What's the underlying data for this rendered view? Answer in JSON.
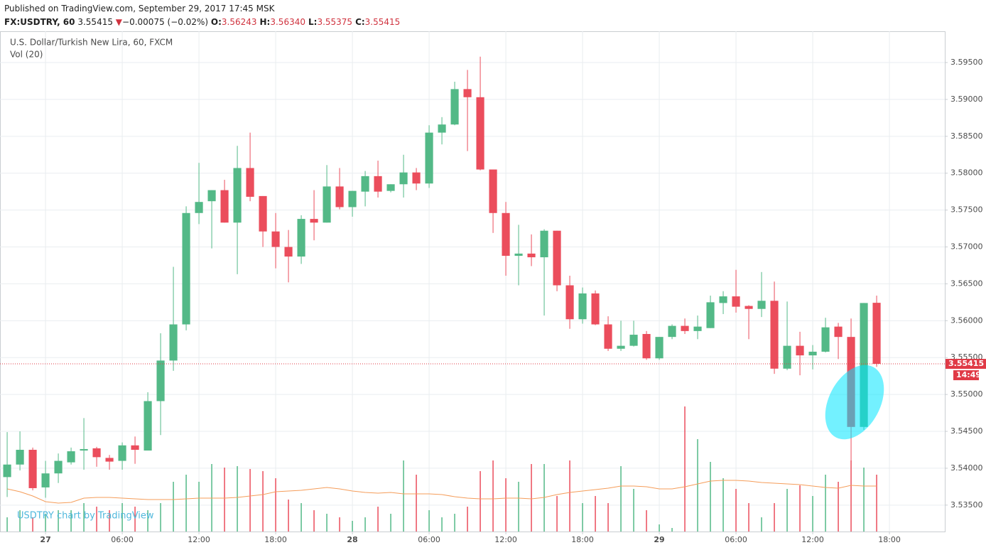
{
  "header": {
    "published": "Published on TradingView.com, September 29, 2017 17:45 MSK",
    "symbol": "FX:USDTRY, 60",
    "last": "3.55415",
    "direction": "▼",
    "change": "−0.00075 (−0.02%)",
    "ohlc": [
      {
        "label": "O:",
        "value": "3.56243"
      },
      {
        "label": "H:",
        "value": "3.56340"
      },
      {
        "label": "L:",
        "value": "3.55375"
      },
      {
        "label": "C:",
        "value": "3.55415"
      }
    ]
  },
  "chart_data": {
    "type": "candlestick",
    "title": "U.S. Dollar/Turkish New Lira, 60, FXCM",
    "volume_title": "Vol (20)",
    "watermark": "USDTRY chart by TradingView",
    "x": [
      0,
      1,
      2,
      3,
      4,
      5,
      6,
      7,
      8,
      9,
      10,
      11,
      12,
      13,
      14,
      15,
      16,
      17,
      18,
      19,
      20,
      21,
      22,
      23,
      24,
      25,
      26,
      27,
      28,
      29,
      30,
      31,
      32,
      33,
      34,
      35,
      36,
      37,
      38,
      39,
      40,
      41,
      42,
      43,
      44,
      45,
      46,
      47,
      48,
      49,
      50,
      51,
      52,
      53,
      54,
      55,
      56,
      57,
      58,
      59,
      60,
      61,
      62,
      63,
      64,
      65,
      66,
      67,
      68
    ],
    "open": [
      3.5388,
      3.5405,
      3.5425,
      3.5374,
      3.5393,
      3.5408,
      3.5424,
      3.5427,
      3.5414,
      3.541,
      3.5431,
      3.5424,
      3.5491,
      3.5546,
      3.5595,
      3.5746,
      3.5762,
      3.5777,
      3.5733,
      3.5807,
      3.5769,
      3.5721,
      3.57,
      3.5687,
      3.5738,
      3.5733,
      3.5782,
      3.5754,
      3.5775,
      3.5796,
      3.5776,
      3.5785,
      3.5801,
      3.5786,
      3.5855,
      3.5866,
      3.5914,
      3.5903,
      3.5805,
      3.5746,
      3.5688,
      3.5691,
      3.5686,
      3.5722,
      3.5648,
      3.5602,
      3.5637,
      3.5595,
      3.5562,
      3.5566,
      3.5582,
      3.5549,
      3.5578,
      3.5593,
      3.5586,
      3.559,
      3.5624,
      3.5633,
      3.562,
      3.5616,
      3.5627,
      3.5535,
      3.5566,
      3.5553,
      3.5558,
      3.5592,
      3.5578,
      3.5456,
      3.56243
    ],
    "high": [
      3.5449,
      3.545,
      3.5428,
      3.541,
      3.542,
      3.5428,
      3.5468,
      3.5429,
      3.5418,
      3.5435,
      3.5443,
      3.5503,
      3.5583,
      3.5673,
      3.5755,
      3.5814,
      3.5777,
      3.5791,
      3.5837,
      3.5855,
      3.5769,
      3.5746,
      3.5723,
      3.5743,
      3.5777,
      3.5811,
      3.5807,
      3.5776,
      3.5803,
      3.5817,
      3.5785,
      3.5825,
      3.5807,
      3.5865,
      3.5876,
      3.5924,
      3.594,
      3.5958,
      3.5805,
      3.5761,
      3.573,
      3.5717,
      3.5724,
      3.5722,
      3.5661,
      3.5645,
      3.5641,
      3.5606,
      3.56,
      3.56,
      3.5586,
      3.5578,
      3.5595,
      3.5603,
      3.5607,
      3.5634,
      3.564,
      3.5669,
      3.5621,
      3.5666,
      3.5653,
      3.5626,
      3.5585,
      3.5567,
      3.5604,
      3.5597,
      3.5603,
      3.5624,
      3.5634
    ],
    "low": [
      3.5361,
      3.5397,
      3.537,
      3.536,
      3.538,
      3.5405,
      3.5398,
      3.5402,
      3.5398,
      3.5398,
      3.5406,
      3.5424,
      3.5445,
      3.5532,
      3.5587,
      3.5731,
      3.5698,
      3.5733,
      3.5663,
      3.5762,
      3.57,
      3.5671,
      3.5652,
      3.5677,
      3.5709,
      3.5733,
      3.5751,
      3.5741,
      3.5755,
      3.5767,
      3.5774,
      3.5767,
      3.5777,
      3.578,
      3.5839,
      3.5865,
      3.583,
      3.5804,
      3.5719,
      3.5661,
      3.5648,
      3.5674,
      3.5607,
      3.564,
      3.5589,
      3.5596,
      3.5594,
      3.5559,
      3.5559,
      3.5565,
      3.5547,
      3.5547,
      3.5575,
      3.5582,
      3.5575,
      3.559,
      3.5609,
      3.5611,
      3.5575,
      3.5605,
      3.5528,
      3.5533,
      3.5526,
      3.5534,
      3.5557,
      3.5548,
      3.5409,
      3.5452,
      3.55375
    ],
    "close": [
      3.5405,
      3.5425,
      3.5373,
      3.5393,
      3.541,
      3.5423,
      3.5426,
      3.5415,
      3.5409,
      3.5431,
      3.5425,
      3.5491,
      3.5546,
      3.5595,
      3.5746,
      3.5761,
      3.5777,
      3.5733,
      3.5807,
      3.5768,
      3.5721,
      3.57,
      3.5687,
      3.5738,
      3.5733,
      3.5782,
      3.5754,
      3.5776,
      3.5796,
      3.5775,
      3.5785,
      3.5801,
      3.5786,
      3.5855,
      3.5866,
      3.5914,
      3.5903,
      3.5805,
      3.5746,
      3.5688,
      3.5691,
      3.5686,
      3.5722,
      3.5648,
      3.5602,
      3.5637,
      3.5595,
      3.5562,
      3.5566,
      3.5581,
      3.5549,
      3.5578,
      3.5593,
      3.5586,
      3.5592,
      3.5625,
      3.5633,
      3.5619,
      3.5616,
      3.5627,
      3.5535,
      3.5566,
      3.5553,
      3.5558,
      3.5591,
      3.5578,
      3.5456,
      3.5624,
      3.55415
    ],
    "volume": [
      20,
      30,
      20,
      25,
      30,
      30,
      40,
      35,
      30,
      40,
      35,
      30,
      40,
      70,
      80,
      70,
      95,
      90,
      92,
      88,
      85,
      75,
      45,
      40,
      30,
      25,
      20,
      15,
      20,
      35,
      25,
      100,
      80,
      30,
      20,
      25,
      35,
      85,
      100,
      75,
      70,
      95,
      95,
      50,
      100,
      40,
      50,
      40,
      92,
      60,
      30,
      10,
      5,
      176,
      130,
      98,
      75,
      60,
      40,
      20,
      40,
      60,
      65,
      50,
      80,
      70,
      100,
      90,
      80
    ],
    "volume_ma": [
      60,
      56,
      50,
      42,
      40,
      41,
      47,
      48,
      48,
      47,
      46,
      45,
      45,
      45,
      46,
      47,
      47,
      47,
      48,
      50,
      52,
      56,
      57,
      58,
      60,
      62,
      60,
      57,
      55,
      54,
      55,
      53,
      53,
      53,
      52,
      49,
      47,
      46,
      46,
      47,
      47,
      46,
      48,
      52,
      55,
      57,
      59,
      61,
      64,
      64,
      63,
      60,
      60,
      63,
      67,
      71,
      72,
      72,
      71,
      69,
      68,
      67,
      66,
      64,
      62,
      61,
      65,
      64,
      64
    ],
    "up_color": "#53b987",
    "down_color": "#eb4d5c",
    "ma_color": "#f59d5a",
    "xlim": [
      -0.56,
      73.33
    ],
    "xticks": [
      {
        "value": 3,
        "label": "27"
      },
      {
        "value": 9,
        "label": "06:00"
      },
      {
        "value": 15,
        "label": "12:00"
      },
      {
        "value": 21,
        "label": "18:00"
      },
      {
        "value": 27,
        "label": "28"
      },
      {
        "value": 33,
        "label": "06:00"
      },
      {
        "value": 39,
        "label": "12:00"
      },
      {
        "value": 45,
        "label": "18:00"
      },
      {
        "value": 51,
        "label": "29"
      },
      {
        "value": 57,
        "label": "06:00"
      },
      {
        "value": 63,
        "label": "12:00"
      },
      {
        "value": 69,
        "label": "18:00"
      }
    ],
    "ylim": [
      3.53142,
      3.59924
    ],
    "yticks": [
      {
        "value": 3.535,
        "label": "3.53500"
      },
      {
        "value": 3.54,
        "label": "3.54000"
      },
      {
        "value": 3.545,
        "label": "3.54500"
      },
      {
        "value": 3.55,
        "label": "3.55000"
      },
      {
        "value": 3.555,
        "label": "3.55500"
      },
      {
        "value": 3.56,
        "label": "3.56000"
      },
      {
        "value": 3.565,
        "label": "3.56500"
      },
      {
        "value": 3.57,
        "label": "3.57000"
      },
      {
        "value": 3.575,
        "label": "3.57500"
      },
      {
        "value": 3.58,
        "label": "3.58000"
      },
      {
        "value": 3.585,
        "label": "3.58500"
      },
      {
        "value": 3.59,
        "label": "3.59000"
      },
      {
        "value": 3.595,
        "label": "3.59500"
      }
    ],
    "price_tag": {
      "value": 3.55415,
      "label": "3.55415"
    },
    "countdown": "14:49",
    "grid": true
  }
}
